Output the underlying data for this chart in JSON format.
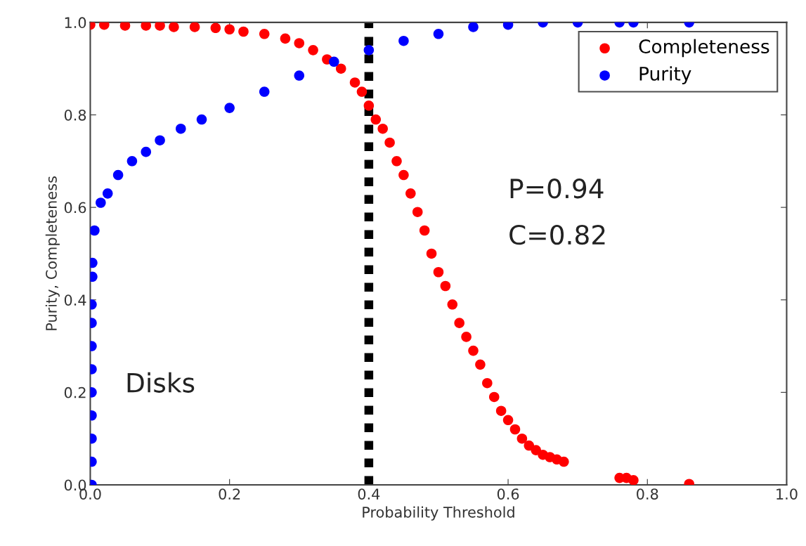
{
  "chart_data": {
    "type": "scatter",
    "xlabel": "Probability Threshold",
    "ylabel": "Purity, Completeness",
    "xlim": [
      0.0,
      1.0
    ],
    "ylim": [
      0.0,
      1.0
    ],
    "xticks": [
      {
        "value": 0,
        "label": "0.0"
      },
      0.2,
      0.4,
      0.6,
      0.8,
      {
        "value": 1,
        "label": "1.0"
      }
    ],
    "yticks": [
      {
        "value": 0,
        "label": "0.0"
      },
      0.2,
      0.4,
      0.6,
      0.8,
      {
        "value": 1,
        "label": "1.0"
      }
    ],
    "grid": false,
    "legend": "top right",
    "marker": "circle",
    "series": [
      {
        "name": "Completeness",
        "color": "#ff0000",
        "x": [
          0.0,
          0.02,
          0.05,
          0.08,
          0.1,
          0.12,
          0.15,
          0.18,
          0.2,
          0.22,
          0.25,
          0.28,
          0.3,
          0.32,
          0.34,
          0.36,
          0.38,
          0.39,
          0.4,
          0.41,
          0.42,
          0.43,
          0.44,
          0.45,
          0.46,
          0.47,
          0.48,
          0.49,
          0.5,
          0.51,
          0.52,
          0.53,
          0.54,
          0.55,
          0.56,
          0.57,
          0.58,
          0.59,
          0.6,
          0.61,
          0.62,
          0.63,
          0.64,
          0.65,
          0.66,
          0.67,
          0.68,
          0.76,
          0.77,
          0.78,
          0.86
        ],
        "values": [
          0.995,
          0.995,
          0.993,
          0.993,
          0.993,
          0.99,
          0.99,
          0.988,
          0.985,
          0.98,
          0.975,
          0.965,
          0.955,
          0.94,
          0.92,
          0.9,
          0.87,
          0.85,
          0.82,
          0.79,
          0.77,
          0.74,
          0.7,
          0.67,
          0.63,
          0.59,
          0.55,
          0.5,
          0.46,
          0.43,
          0.39,
          0.35,
          0.32,
          0.29,
          0.26,
          0.22,
          0.19,
          0.16,
          0.14,
          0.12,
          0.1,
          0.085,
          0.075,
          0.065,
          0.06,
          0.055,
          0.05,
          0.015,
          0.015,
          0.01,
          0.002
        ]
      },
      {
        "name": "Purity",
        "color": "#0000ff",
        "x": [
          0.002,
          0.002,
          0.002,
          0.002,
          0.002,
          0.002,
          0.002,
          0.002,
          0.002,
          0.003,
          0.003,
          0.006,
          0.015,
          0.025,
          0.04,
          0.06,
          0.08,
          0.1,
          0.13,
          0.16,
          0.2,
          0.25,
          0.3,
          0.35,
          0.4,
          0.45,
          0.5,
          0.55,
          0.6,
          0.65,
          0.7,
          0.76,
          0.78,
          0.86
        ],
        "values": [
          0.0,
          0.05,
          0.1,
          0.15,
          0.2,
          0.25,
          0.3,
          0.35,
          0.39,
          0.45,
          0.48,
          0.55,
          0.61,
          0.63,
          0.67,
          0.7,
          0.72,
          0.745,
          0.77,
          0.79,
          0.815,
          0.85,
          0.885,
          0.915,
          0.94,
          0.96,
          0.975,
          0.99,
          0.995,
          1.0,
          1.0,
          1.0,
          1.0,
          1.0
        ]
      }
    ],
    "ref_lines": [
      {
        "axis": "x",
        "value": 0.4,
        "color": "#000000",
        "line_style": "dotted"
      }
    ],
    "annotations": [
      "P=0.94",
      "C=0.82",
      "Disks"
    ]
  }
}
